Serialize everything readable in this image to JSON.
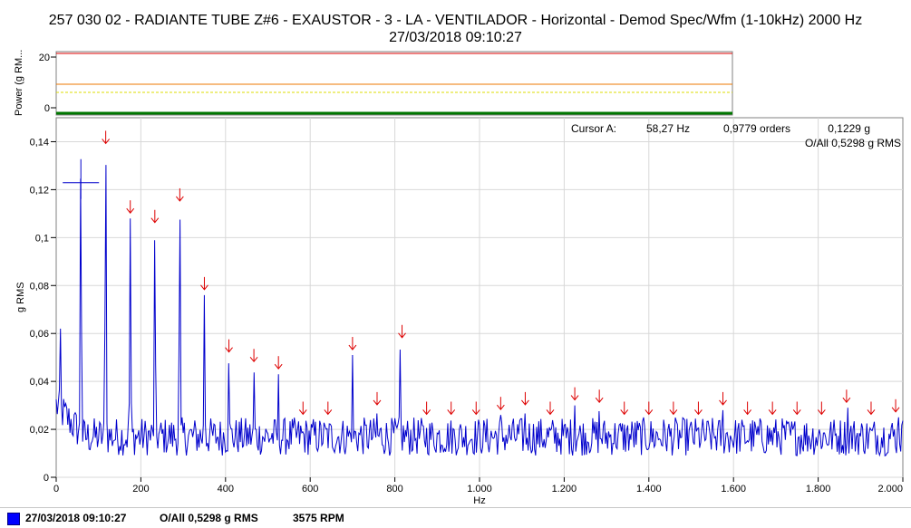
{
  "header": {
    "title_line1": "257 030 02 - RADIANTE TUBE Z#6 - EXAUSTOR - 3 - LA - VENTILADOR - Horizontal - Demod Spec/Wfm (1-10kHz) 2000 Hz",
    "title_line2": "27/03/2018 09:10:27"
  },
  "power_panel": {
    "ylabel": "Power (g RM...",
    "ytick_top": "20",
    "ytick_bottom": "0",
    "alarm_colors": [
      "#dd0000",
      "#ee7700",
      "#dddd00"
    ],
    "trace_color": "#007700"
  },
  "cursor_info": {
    "label": "Cursor A:",
    "freq": "58,27 Hz",
    "orders": "0,9779 orders",
    "amp": "0,1229 g",
    "overall": "O/All 0,5298 g RMS"
  },
  "footer": {
    "date": "27/03/2018 09:10:27",
    "overall": "O/All 0,5298 g RMS",
    "rpm": "3575 RPM",
    "swatch_color": "#0000ff"
  },
  "chart_data": {
    "type": "line",
    "xlabel": "Hz",
    "ylabel": "g RMS",
    "xlim": [
      0,
      2000
    ],
    "ylim": [
      0,
      0.15
    ],
    "grid": true,
    "line_color": "#0000cc",
    "xticks": [
      0,
      200,
      400,
      600,
      800,
      1000,
      1200,
      1400,
      1600,
      1800,
      2000
    ],
    "xtick_labels": [
      "0",
      "200",
      "400",
      "600",
      "800",
      "1.000",
      "1.200",
      "1.400",
      "1.600",
      "1.800",
      "2.000"
    ],
    "yticks": [
      0,
      0.02,
      0.04,
      0.06,
      0.08,
      0.1,
      0.12,
      0.14
    ],
    "ytick_labels": [
      "0",
      "0,02",
      "0,04",
      "0,06",
      "0,08",
      "0,1",
      "0,12",
      "0,14"
    ],
    "peaks": [
      {
        "x": 10,
        "y": 0.062
      },
      {
        "x": 58,
        "y": 0.131
      },
      {
        "x": 117,
        "y": 0.137
      },
      {
        "x": 175,
        "y": 0.108
      },
      {
        "x": 233,
        "y": 0.104
      },
      {
        "x": 292,
        "y": 0.113
      },
      {
        "x": 350,
        "y": 0.076
      },
      {
        "x": 408,
        "y": 0.05
      },
      {
        "x": 467,
        "y": 0.046
      },
      {
        "x": 525,
        "y": 0.043
      },
      {
        "x": 700,
        "y": 0.051
      },
      {
        "x": 758,
        "y": 0.028
      },
      {
        "x": 812,
        "y": 0.056
      },
      {
        "x": 1050,
        "y": 0.026
      },
      {
        "x": 1108,
        "y": 0.028
      },
      {
        "x": 1225,
        "y": 0.03
      },
      {
        "x": 1283,
        "y": 0.029
      },
      {
        "x": 1575,
        "y": 0.028
      },
      {
        "x": 1870,
        "y": 0.029
      },
      {
        "x": 1990,
        "y": 0.025
      }
    ],
    "fault_markers_x": [
      117,
      175,
      233,
      292,
      350,
      408,
      467,
      525,
      583,
      642,
      700,
      758,
      817,
      875,
      933,
      992,
      1050,
      1108,
      1167,
      1225,
      1283,
      1342,
      1400,
      1458,
      1517,
      1575,
      1633,
      1692,
      1750,
      1808,
      1867,
      1925,
      1983
    ],
    "marker_color": "#dd0000",
    "cursor": {
      "x": 58.27,
      "y": 0.1229
    }
  }
}
